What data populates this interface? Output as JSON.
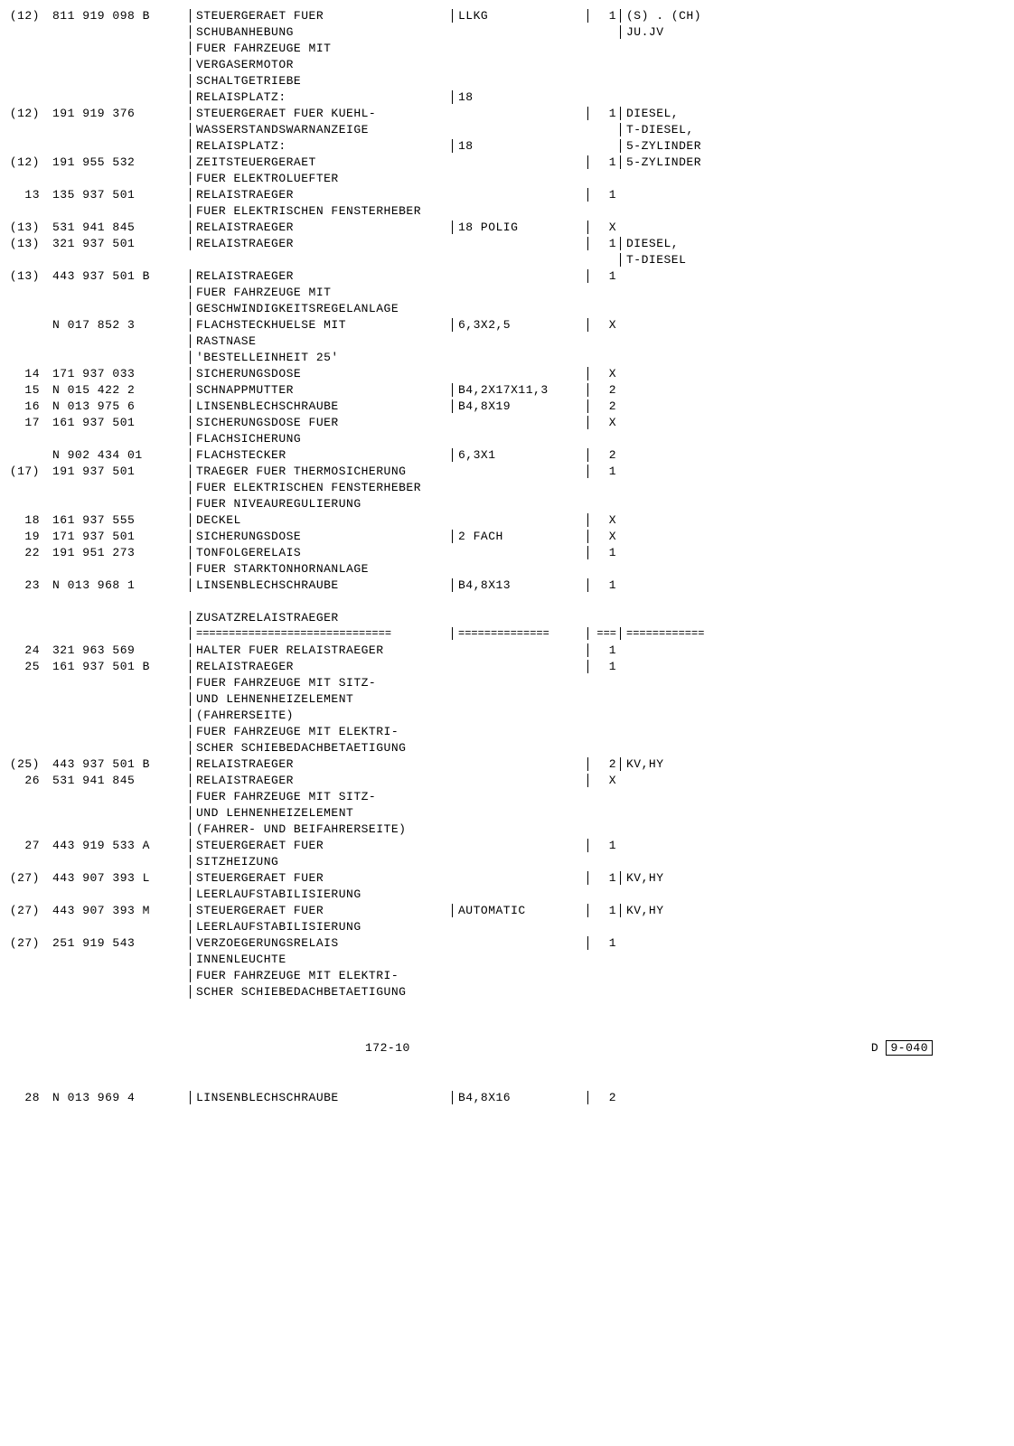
{
  "rows": [
    {
      "c1": "(12)",
      "c2": "811 919 098 B",
      "c3": "STEUERGERAET FUER",
      "c4": "LLKG",
      "c5": "1",
      "c6": "(S) . (CH)"
    },
    {
      "c1": "",
      "c2": "",
      "c3": "SCHUBANHEBUNG",
      "c4": "",
      "c5": "",
      "c6": "JU.JV"
    },
    {
      "c1": "",
      "c2": "",
      "c3": "FUER FAHRZEUGE MIT",
      "c4": "",
      "c5": "",
      "c6": ""
    },
    {
      "c1": "",
      "c2": "",
      "c3": "VERGASERMOTOR",
      "c4": "",
      "c5": "",
      "c6": ""
    },
    {
      "c1": "",
      "c2": "",
      "c3": "SCHALTGETRIEBE",
      "c4": "",
      "c5": "",
      "c6": ""
    },
    {
      "c1": "",
      "c2": "",
      "c3": "            RELAISPLATZ:",
      "c4": "18",
      "c5": "",
      "c6": ""
    },
    {
      "c1": "(12)",
      "c2": "191 919 376",
      "c3": "STEUERGERAET FUER KUEHL-",
      "c4": "",
      "c5": "1",
      "c6": "DIESEL,"
    },
    {
      "c1": "",
      "c2": "",
      "c3": "WASSERSTANDSWARNANZEIGE",
      "c4": "",
      "c5": "",
      "c6": "T-DIESEL,"
    },
    {
      "c1": "",
      "c2": "",
      "c3": "            RELAISPLATZ:",
      "c4": "18",
      "c5": "",
      "c6": "5-ZYLINDER"
    },
    {
      "c1": "(12)",
      "c2": "191 955 532",
      "c3": "ZEITSTEUERGERAET",
      "c4": "",
      "c5": "1",
      "c6": "5-ZYLINDER"
    },
    {
      "c1": "",
      "c2": "",
      "c3": "FUER ELEKTROLUEFTER",
      "c4": "",
      "c5": "",
      "c6": ""
    },
    {
      "c1": "13",
      "c2": "135 937 501",
      "c3": "RELAISTRAEGER",
      "c4": "",
      "c5": "1",
      "c6": ""
    },
    {
      "c1": "",
      "c2": "",
      "c3": "FUER ELEKTRISCHEN FENSTERHEBER",
      "c4": "",
      "c5": "",
      "c6": ""
    },
    {
      "c1": "(13)",
      "c2": "531 941 845",
      "c3": "RELAISTRAEGER",
      "c4": "18 POLIG",
      "c5": "X",
      "c6": ""
    },
    {
      "c1": "(13)",
      "c2": "321 937 501",
      "c3": "RELAISTRAEGER",
      "c4": "",
      "c5": "1",
      "c6": "DIESEL,"
    },
    {
      "c1": "",
      "c2": "",
      "c3": "",
      "c4": "",
      "c5": "",
      "c6": "T-DIESEL"
    },
    {
      "c1": "(13)",
      "c2": "443 937 501 B",
      "c3": "RELAISTRAEGER",
      "c4": "",
      "c5": "1",
      "c6": ""
    },
    {
      "c1": "",
      "c2": "",
      "c3": "FUER FAHRZEUGE MIT",
      "c4": "",
      "c5": "",
      "c6": ""
    },
    {
      "c1": "",
      "c2": "",
      "c3": "GESCHWINDIGKEITSREGELANLAGE",
      "c4": "",
      "c5": "",
      "c6": ""
    },
    {
      "c1": "",
      "c2": "N   017 852 3",
      "c3": "FLACHSTECKHUELSE MIT",
      "c4": "6,3X2,5",
      "c5": "X",
      "c6": ""
    },
    {
      "c1": "",
      "c2": "",
      "c3": "RASTNASE",
      "c4": "",
      "c5": "",
      "c6": ""
    },
    {
      "c1": "",
      "c2": "",
      "c3": "'BESTELLEINHEIT 25'",
      "c4": "",
      "c5": "",
      "c6": ""
    },
    {
      "c1": "14",
      "c2": "171 937 033",
      "c3": "SICHERUNGSDOSE",
      "c4": "",
      "c5": "X",
      "c6": ""
    },
    {
      "c1": "15",
      "c2": "N   015 422 2",
      "c3": "SCHNAPPMUTTER",
      "c4": "B4,2X17X11,3",
      "c5": "2",
      "c6": ""
    },
    {
      "c1": "16",
      "c2": "N   013 975 6",
      "c3": "LINSENBLECHSCHRAUBE",
      "c4": "B4,8X19",
      "c5": "2",
      "c6": ""
    },
    {
      "c1": "17",
      "c2": "161 937 501",
      "c3": "SICHERUNGSDOSE FUER",
      "c4": "",
      "c5": "X",
      "c6": ""
    },
    {
      "c1": "",
      "c2": "",
      "c3": "FLACHSICHERUNG",
      "c4": "",
      "c5": "",
      "c6": ""
    },
    {
      "c1": "",
      "c2": "N   902 434 01",
      "c3": "FLACHSTECKER",
      "c4": "6,3X1",
      "c5": "2",
      "c6": ""
    },
    {
      "c1": "(17)",
      "c2": "191 937 501",
      "c3": "TRAEGER FUER THERMOSICHERUNG",
      "c4": "",
      "c5": "1",
      "c6": ""
    },
    {
      "c1": "",
      "c2": "",
      "c3": "FUER ELEKTRISCHEN FENSTERHEBER",
      "c4": "",
      "c5": "",
      "c6": ""
    },
    {
      "c1": "",
      "c2": "",
      "c3": "FUER NIVEAUREGULIERUNG",
      "c4": "",
      "c5": "",
      "c6": ""
    },
    {
      "c1": "18",
      "c2": "161 937 555",
      "c3": "DECKEL",
      "c4": "",
      "c5": "X",
      "c6": ""
    },
    {
      "c1": "19",
      "c2": "171 937 501",
      "c3": "SICHERUNGSDOSE",
      "c4": "2 FACH",
      "c5": "X",
      "c6": ""
    },
    {
      "c1": "22",
      "c2": "191 951 273",
      "c3": "TONFOLGERELAIS",
      "c4": "",
      "c5": "1",
      "c6": ""
    },
    {
      "c1": "",
      "c2": "",
      "c3": "FUER STARKTONHORNANLAGE",
      "c4": "",
      "c5": "",
      "c6": ""
    },
    {
      "c1": "23",
      "c2": "N   013 968 1",
      "c3": "LINSENBLECHSCHRAUBE",
      "c4": "B4,8X13",
      "c5": "1",
      "c6": ""
    },
    {
      "c1": "",
      "c2": "",
      "c3": "",
      "c4": "",
      "c5": "",
      "c6": ""
    },
    {
      "c1": "",
      "c2": "",
      "c3": "ZUSATZRELAISTRAEGER",
      "c4": "",
      "c5": "",
      "c6": ""
    },
    {
      "c1": "",
      "c2": "",
      "c3": "==============================",
      "c4": "==============",
      "c5": "===",
      "c6": "============",
      "sep": true
    },
    {
      "c1": "24",
      "c2": "321 963 569",
      "c3": "HALTER FUER RELAISTRAEGER",
      "c4": "",
      "c5": "1",
      "c6": ""
    },
    {
      "c1": "25",
      "c2": "161 937 501 B",
      "c3": "RELAISTRAEGER",
      "c4": "",
      "c5": "1",
      "c6": ""
    },
    {
      "c1": "",
      "c2": "",
      "c3": "FUER FAHRZEUGE MIT SITZ-",
      "c4": "",
      "c5": "",
      "c6": ""
    },
    {
      "c1": "",
      "c2": "",
      "c3": "UND LEHNENHEIZELEMENT",
      "c4": "",
      "c5": "",
      "c6": ""
    },
    {
      "c1": "",
      "c2": "",
      "c3": "(FAHRERSEITE)",
      "c4": "",
      "c5": "",
      "c6": ""
    },
    {
      "c1": "",
      "c2": "",
      "c3": "FUER FAHRZEUGE MIT ELEKTRI-",
      "c4": "",
      "c5": "",
      "c6": ""
    },
    {
      "c1": "",
      "c2": "",
      "c3": "SCHER SCHIEBEDACHBETAETIGUNG",
      "c4": "",
      "c5": "",
      "c6": ""
    },
    {
      "c1": "(25)",
      "c2": "443 937 501 B",
      "c3": "RELAISTRAEGER",
      "c4": "",
      "c5": "2",
      "c6": "KV,HY"
    },
    {
      "c1": "26",
      "c2": "531 941 845",
      "c3": "RELAISTRAEGER",
      "c4": "",
      "c5": "X",
      "c6": ""
    },
    {
      "c1": "",
      "c2": "",
      "c3": "FUER FAHRZEUGE MIT SITZ-",
      "c4": "",
      "c5": "",
      "c6": ""
    },
    {
      "c1": "",
      "c2": "",
      "c3": "UND LEHNENHEIZELEMENT",
      "c4": "",
      "c5": "",
      "c6": ""
    },
    {
      "c1": "",
      "c2": "",
      "c3": "(FAHRER- UND BEIFAHRERSEITE)",
      "c4": "",
      "c5": "",
      "c6": ""
    },
    {
      "c1": "27",
      "c2": "443 919 533 A",
      "c3": "STEUERGERAET FUER",
      "c4": "",
      "c5": "1",
      "c6": ""
    },
    {
      "c1": "",
      "c2": "",
      "c3": "SITZHEIZUNG",
      "c4": "",
      "c5": "",
      "c6": ""
    },
    {
      "c1": "(27)",
      "c2": "443 907 393 L",
      "c3": "STEUERGERAET FUER",
      "c4": "",
      "c5": "1",
      "c6": "KV,HY"
    },
    {
      "c1": "",
      "c2": "",
      "c3": "LEERLAUFSTABILISIERUNG",
      "c4": "",
      "c5": "",
      "c6": ""
    },
    {
      "c1": "(27)",
      "c2": "443 907 393 M",
      "c3": "STEUERGERAET FUER",
      "c4": "AUTOMATIC",
      "c5": "1",
      "c6": "KV,HY"
    },
    {
      "c1": "",
      "c2": "",
      "c3": "LEERLAUFSTABILISIERUNG",
      "c4": "",
      "c5": "",
      "c6": ""
    },
    {
      "c1": "(27)",
      "c2": "251 919 543",
      "c3": "VERZOEGERUNGSRELAIS",
      "c4": "",
      "c5": "1",
      "c6": ""
    },
    {
      "c1": "",
      "c2": "",
      "c3": "INNENLEUCHTE",
      "c4": "",
      "c5": "",
      "c6": ""
    },
    {
      "c1": "",
      "c2": "",
      "c3": "FUER FAHRZEUGE MIT ELEKTRI-",
      "c4": "",
      "c5": "",
      "c6": ""
    },
    {
      "c1": "",
      "c2": "",
      "c3": "SCHER SCHIEBEDACHBETAETIGUNG",
      "c4": "",
      "c5": "",
      "c6": ""
    },
    {
      "c1": "",
      "c2": "",
      "c3": "",
      "c4": "",
      "c5": "",
      "c6": ""
    },
    {
      "c1": "",
      "c2": "",
      "c3": "",
      "c4": "",
      "c5": "",
      "c6": ""
    }
  ],
  "footer": {
    "left": "172-10",
    "right_prefix": "D",
    "right_box": "9-040"
  },
  "bottom_row": {
    "c1": "28",
    "c2": "N   013 969 4",
    "c3": "LINSENBLECHSCHRAUBE",
    "c4": "B4,8X16",
    "c5": "2",
    "c6": ""
  }
}
